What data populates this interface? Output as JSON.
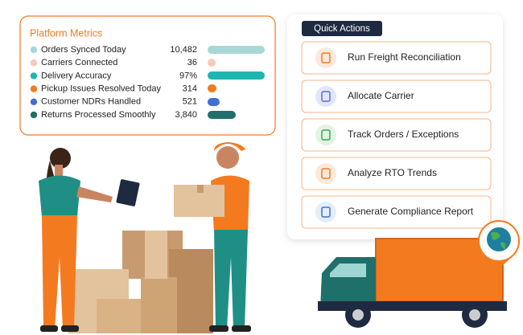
{
  "metrics": {
    "title": "Platform Metrics",
    "items": [
      {
        "label": "Orders Synced Today",
        "value": "10,482"
      },
      {
        "label": "Carriers Connected",
        "value": "36"
      },
      {
        "label": "Delivery Accuracy",
        "value": "97%"
      },
      {
        "label": "Pickup Issues Resolved Today",
        "value": "314"
      },
      {
        "label": "Customer NDRs Handled",
        "value": "521"
      },
      {
        "label": "Returns Processed Smoothly",
        "value": "3,840"
      }
    ]
  },
  "quick_actions": {
    "title": "Quick Actions",
    "actions": [
      "Run Freight Reconciliation",
      "Allocate Carrier",
      "Track Orders / Exceptions",
      "Analyze RTO Trends",
      "Generate Compliance Report"
    ]
  }
}
